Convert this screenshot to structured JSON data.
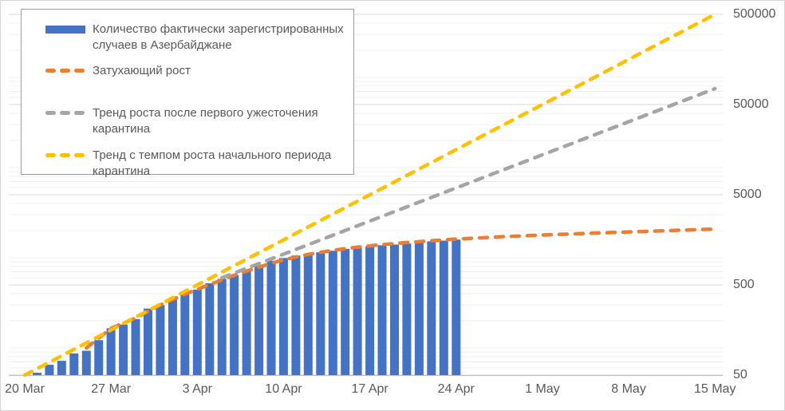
{
  "chart_data": {
    "type": "bar",
    "subtype": "combo-bar-with-dashed-exponential-trend-lines",
    "title": "",
    "y_axis": {
      "scale": "log",
      "side": "right",
      "min": 50,
      "max": 500000,
      "tick_labels": [
        "50",
        "500",
        "5000",
        "50000",
        "500000"
      ],
      "tick_values": [
        50,
        500,
        5000,
        50000,
        500000
      ],
      "minor_gridlines": true
    },
    "x_axis": {
      "tick_labels": [
        "20 Mar",
        "27 Mar",
        "3 Apr",
        "10 Apr",
        "17 Apr",
        "24 Apr",
        "1 May",
        "8 May",
        "15 May"
      ],
      "tick_days": [
        0,
        7,
        14,
        21,
        28,
        35,
        42,
        49,
        56
      ],
      "total_days": 57
    },
    "bars": {
      "name": "Количество фактически зарегистрированных случаев в Азербайджане",
      "color": "#4472C4",
      "first_bar_date": "20 Mar",
      "last_bar_date": "24 Apr",
      "values": [
        44,
        53,
        65,
        72,
        87,
        93,
        122,
        165,
        182,
        209,
        273,
        298,
        359,
        400,
        443,
        521,
        584,
        641,
        717,
        822,
        926,
        991,
        1058,
        1098,
        1148,
        1197,
        1253,
        1283,
        1340,
        1373,
        1398,
        1436,
        1480,
        1518,
        1548,
        1592
      ]
    },
    "lines": [
      {
        "name": "Затухающий рост",
        "color": "#ED7D31",
        "style": "dashed",
        "points": [
          [
            5,
            100
          ],
          [
            7,
            165
          ],
          [
            9,
            215
          ],
          [
            11,
            300
          ],
          [
            13,
            395
          ],
          [
            15,
            505
          ],
          [
            17,
            640
          ],
          [
            19,
            790
          ],
          [
            21,
            950
          ],
          [
            23,
            1090
          ],
          [
            25,
            1210
          ],
          [
            27,
            1310
          ],
          [
            29,
            1400
          ],
          [
            31,
            1475
          ],
          [
            33,
            1545
          ],
          [
            35,
            1610
          ],
          [
            39,
            1720
          ],
          [
            43,
            1810
          ],
          [
            47,
            1890
          ],
          [
            51,
            1975
          ],
          [
            56,
            2080
          ]
        ]
      },
      {
        "name": "Тренд роста после первого ужесточения карантина",
        "color": "#A5A5A5",
        "style": "dashed",
        "points": [
          [
            16,
            600
          ],
          [
            56,
            75000
          ]
        ]
      },
      {
        "name": "Тренд с темпом роста начального периода карантина",
        "color": "#FFC000",
        "style": "dashed",
        "points": [
          [
            0,
            50
          ],
          [
            56,
            500000
          ]
        ]
      }
    ],
    "legend_position": "top-left",
    "grid": true
  },
  "colors": {
    "bar": "#4472C4",
    "line_decay": "#ED7D31",
    "line_post_quarantine": "#A5A5A5",
    "line_initial_rate": "#FFC000",
    "text": "#595959",
    "gridline_minor": "#EFEFEF",
    "gridline_major": "#D8D8D8",
    "axis_line": "#BFBFBF",
    "legend_border": "#9E9E9E"
  }
}
